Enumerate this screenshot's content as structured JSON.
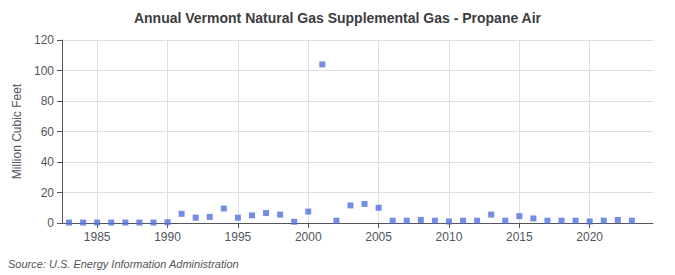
{
  "chart_data": {
    "type": "scatter",
    "title": "Annual Vermont Natural Gas Supplemental Gas - Propane Air",
    "ylabel": "Million Cubic Feet",
    "source": "Source: U.S. Energy Information Administration",
    "x": [
      1983,
      1984,
      1985,
      1986,
      1987,
      1988,
      1989,
      1990,
      1991,
      1992,
      1993,
      1994,
      1995,
      1996,
      1997,
      1998,
      1999,
      2000,
      2001,
      2002,
      2003,
      2004,
      2005,
      2006,
      2007,
      2008,
      2009,
      2010,
      2011,
      2012,
      2013,
      2014,
      2015,
      2016,
      2017,
      2018,
      2019,
      2020,
      2021,
      2022,
      2023
    ],
    "values": [
      0.3,
      0.3,
      0.3,
      0.3,
      0.3,
      0.3,
      0.3,
      0.5,
      6.0,
      3.5,
      4.0,
      9.5,
      3.5,
      5.0,
      6.5,
      5.5,
      0.8,
      7.5,
      104.0,
      1.5,
      11.5,
      12.5,
      10.0,
      1.5,
      1.5,
      2.0,
      1.5,
      1.0,
      1.5,
      1.5,
      5.5,
      1.5,
      4.5,
      3.0,
      1.5,
      1.5,
      1.5,
      1.0,
      1.5,
      2.0,
      1.5
    ],
    "xlim": [
      1982.5,
      2024.5
    ],
    "xticks": [
      1985,
      1990,
      1995,
      2000,
      2005,
      2010,
      2015,
      2020
    ],
    "ylim": [
      0,
      120
    ],
    "yticks": [
      0,
      20,
      40,
      60,
      80,
      100,
      120
    ],
    "grid": true,
    "marker": "square"
  }
}
